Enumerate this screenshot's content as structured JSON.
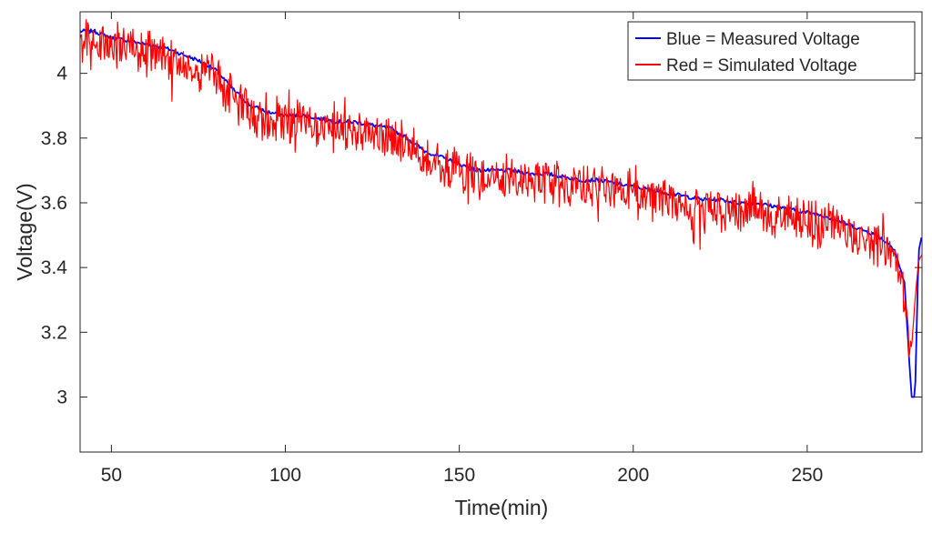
{
  "chart_data": {
    "type": "line",
    "title": "",
    "xlabel": "Time(min)",
    "ylabel": "Voltage(V)",
    "xlim": [
      41,
      283
    ],
    "ylim": [
      2.83,
      4.19
    ],
    "xticks": [
      50,
      100,
      150,
      200,
      250
    ],
    "yticks": [
      3,
      3.2,
      3.4,
      3.6,
      3.8,
      4
    ],
    "grid": false,
    "legend_position": "top-right",
    "legend": [
      "Blue = Measured Voltage",
      "Red = Simulated Voltage"
    ],
    "series": [
      {
        "name": "Blue = Measured Voltage",
        "color": "#0000ff",
        "x": [
          41,
          45,
          50,
          55,
          60,
          65,
          70,
          75,
          80,
          85,
          90,
          95,
          100,
          105,
          110,
          115,
          120,
          125,
          130,
          135,
          140,
          145,
          150,
          155,
          160,
          165,
          170,
          175,
          180,
          185,
          190,
          195,
          200,
          205,
          210,
          215,
          220,
          225,
          230,
          235,
          240,
          245,
          250,
          255,
          260,
          265,
          270,
          275,
          278,
          280,
          281,
          282,
          283
        ],
        "y": [
          4.13,
          4.13,
          4.11,
          4.1,
          4.09,
          4.08,
          4.06,
          4.04,
          4.01,
          3.95,
          3.9,
          3.88,
          3.87,
          3.87,
          3.86,
          3.85,
          3.85,
          3.84,
          3.83,
          3.8,
          3.76,
          3.74,
          3.72,
          3.7,
          3.7,
          3.7,
          3.69,
          3.69,
          3.68,
          3.67,
          3.67,
          3.66,
          3.65,
          3.64,
          3.63,
          3.62,
          3.61,
          3.61,
          3.6,
          3.6,
          3.59,
          3.58,
          3.57,
          3.56,
          3.54,
          3.52,
          3.5,
          3.46,
          3.35,
          3.0,
          3.0,
          3.45,
          3.5
        ]
      },
      {
        "name": "Red = Simulated Voltage",
        "color": "#ff0000",
        "x": [
          41,
          45,
          50,
          55,
          60,
          65,
          70,
          75,
          80,
          85,
          90,
          95,
          100,
          105,
          110,
          115,
          120,
          125,
          130,
          135,
          140,
          145,
          150,
          155,
          160,
          165,
          170,
          175,
          180,
          185,
          190,
          195,
          200,
          205,
          210,
          215,
          220,
          225,
          230,
          235,
          240,
          245,
          250,
          255,
          260,
          265,
          270,
          275,
          278,
          280,
          281,
          282,
          283
        ],
        "y": [
          4.12,
          4.12,
          4.1,
          4.09,
          4.08,
          4.07,
          4.05,
          4.03,
          4.0,
          3.94,
          3.89,
          3.87,
          3.86,
          3.86,
          3.85,
          3.84,
          3.84,
          3.83,
          3.82,
          3.79,
          3.75,
          3.73,
          3.71,
          3.69,
          3.69,
          3.69,
          3.68,
          3.68,
          3.67,
          3.66,
          3.66,
          3.65,
          3.64,
          3.63,
          3.62,
          3.61,
          3.6,
          3.6,
          3.59,
          3.59,
          3.58,
          3.57,
          3.56,
          3.55,
          3.53,
          3.51,
          3.49,
          3.45,
          3.3,
          3.15,
          3.3,
          3.42,
          3.44
        ]
      }
    ]
  }
}
